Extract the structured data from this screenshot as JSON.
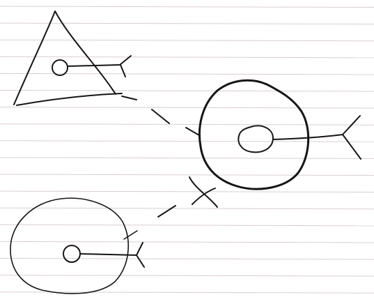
{
  "paper": {
    "background": "#ffffff",
    "rule_color": "#d9cdd3",
    "ink_color": "#151515"
  },
  "diagram": {
    "shapes": [
      {
        "kind": "triangle-cell",
        "has_nucleus": true,
        "has_axon": true
      },
      {
        "kind": "round-cell-thick-outline",
        "has_nucleus": true,
        "has_axon": true
      },
      {
        "kind": "round-cell-thin-outline",
        "has_nucleus": true,
        "has_axon": true
      }
    ],
    "connections": [
      {
        "from": "triangle-cell",
        "to": "round-cell-thick-outline",
        "style": "dashed"
      },
      {
        "from": "round-cell-thin-outline",
        "to": "round-cell-thick-outline",
        "style": "dashed-crossed"
      }
    ]
  }
}
